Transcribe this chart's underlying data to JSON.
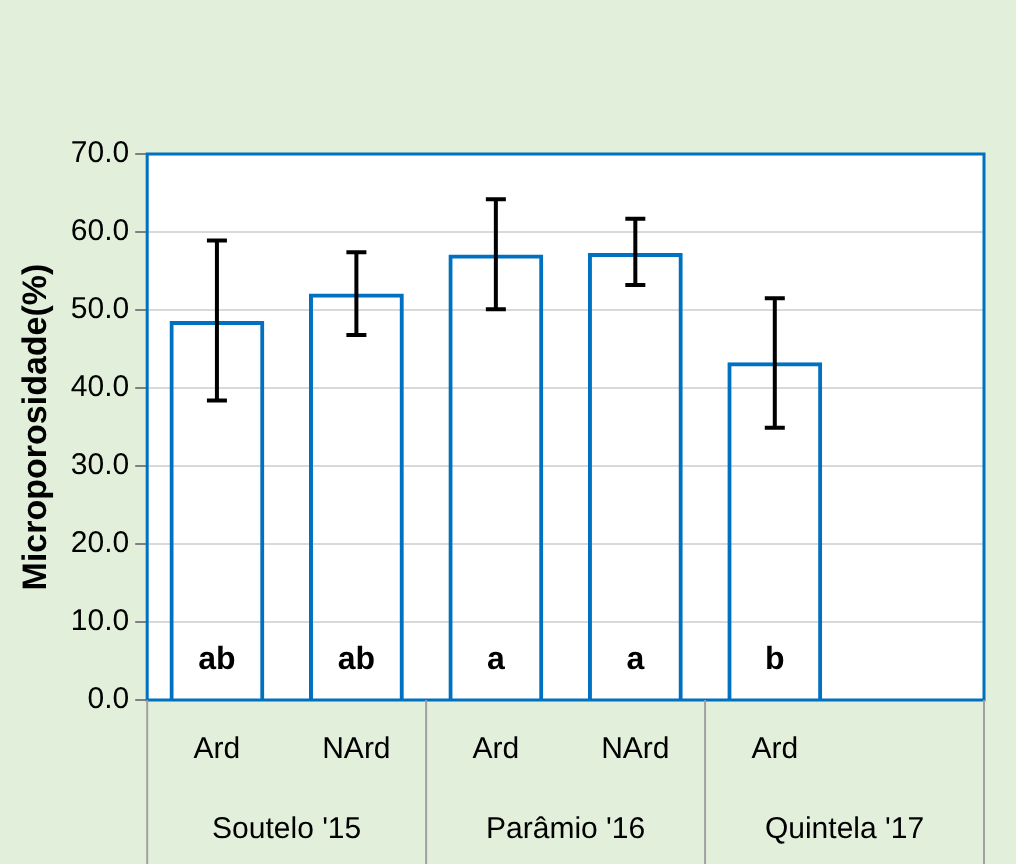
{
  "chart_data": {
    "type": "bar",
    "ylabel": "Microporosidade(%)",
    "categories": [
      "Ard",
      "NArd",
      "Ard",
      "NArd",
      "Ard",
      null
    ],
    "series": [
      {
        "color": "#0070c0",
        "values": [
          48.6,
          52.1,
          57.1,
          57.3,
          43.3,
          null
        ],
        "errors": [
          [
            38.4,
            58.9
          ],
          [
            46.8,
            57.4
          ],
          [
            50.1,
            64.2
          ],
          [
            53.2,
            61.7
          ],
          [
            34.9,
            51.5
          ],
          null
        ],
        "value_labels": [
          "ab",
          "ab",
          "a",
          "a",
          "b",
          null
        ]
      }
    ],
    "annotations": [
      "Soutelo '15",
      "Parâmio '16",
      "Quintela '17"
    ],
    "ylim": [
      0,
      70
    ],
    "yticks": [
      {
        "value": 0,
        "label": "0.0"
      },
      {
        "value": 10,
        "label": "10.0"
      },
      {
        "value": 20,
        "label": "20.0"
      },
      {
        "value": 30,
        "label": "30.0"
      },
      {
        "value": 40,
        "label": "40.0"
      },
      {
        "value": 50,
        "label": "50.0"
      },
      {
        "value": 60,
        "label": "60.0"
      },
      {
        "value": 70,
        "label": "70.0"
      }
    ],
    "grid": "y",
    "legend": false
  }
}
